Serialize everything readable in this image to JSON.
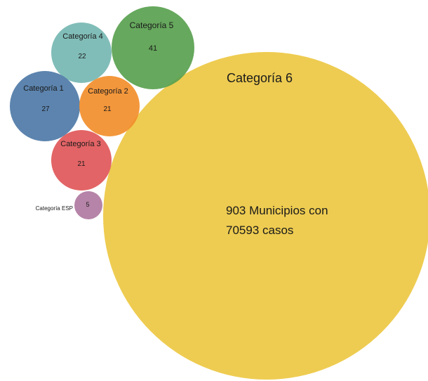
{
  "chart_data": {
    "type": "bubble",
    "title": "",
    "series": [
      {
        "name": "Categoría 1",
        "value": 27,
        "color": "#4e79a7"
      },
      {
        "name": "Categoría 2",
        "value": 21,
        "color": "#f28e2b"
      },
      {
        "name": "Categoría 3",
        "value": 21,
        "color": "#e15759"
      },
      {
        "name": "Categoría 4",
        "value": 22,
        "color": "#76b7b2"
      },
      {
        "name": "Categoría 5",
        "value": 41,
        "color": "#59a14f"
      },
      {
        "name": "Categoría ESP",
        "value": 5,
        "color": "#b07aa1"
      },
      {
        "name": "Categoría 6",
        "value": 903,
        "color": "#edc948",
        "annotation_line1": "903 Municipios con",
        "annotation_line2": "70593 casos"
      }
    ]
  }
}
